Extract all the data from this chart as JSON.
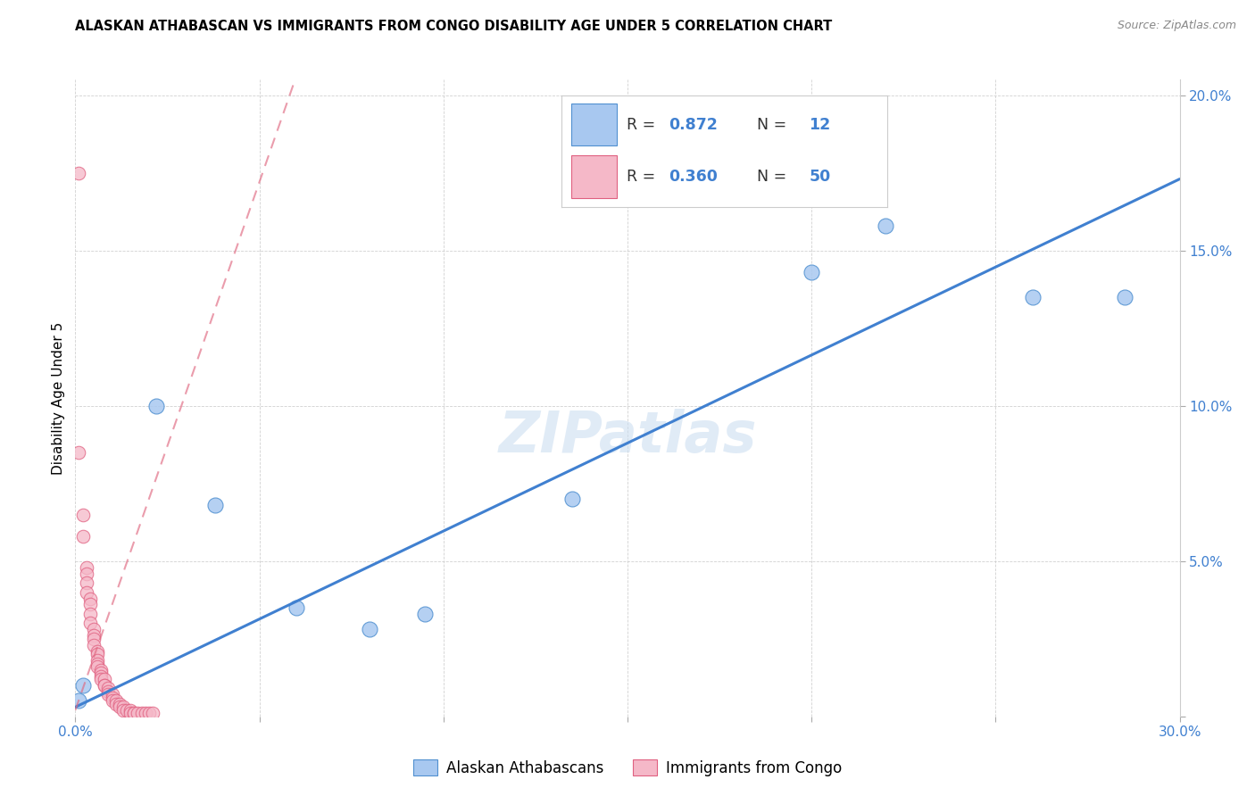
{
  "title": "ALASKAN ATHABASCAN VS IMMIGRANTS FROM CONGO DISABILITY AGE UNDER 5 CORRELATION CHART",
  "source": "Source: ZipAtlas.com",
  "ylabel": "Disability Age Under 5",
  "xlim": [
    0.0,
    0.3
  ],
  "ylim": [
    0.0,
    0.205
  ],
  "xticks": [
    0.0,
    0.05,
    0.1,
    0.15,
    0.2,
    0.25,
    0.3
  ],
  "yticks": [
    0.0,
    0.05,
    0.1,
    0.15,
    0.2
  ],
  "right_ytick_labels": [
    "",
    "5.0%",
    "10.0%",
    "15.0%",
    "20.0%"
  ],
  "left_xtick_label": "0.0%",
  "right_xtick_label": "30.0%",
  "blue_label": "Alaskan Athabascans",
  "pink_label": "Immigrants from Congo",
  "blue_R": 0.872,
  "blue_N": 12,
  "pink_R": 0.36,
  "pink_N": 50,
  "blue_color": "#A8C8F0",
  "pink_color": "#F5B8C8",
  "blue_edge_color": "#5090D0",
  "pink_edge_color": "#E06080",
  "blue_line_color": "#4080D0",
  "pink_line_color": "#E06880",
  "watermark": "ZIPatlas",
  "blue_points": [
    [
      0.001,
      0.005
    ],
    [
      0.002,
      0.01
    ],
    [
      0.022,
      0.1
    ],
    [
      0.038,
      0.068
    ],
    [
      0.06,
      0.035
    ],
    [
      0.08,
      0.028
    ],
    [
      0.095,
      0.033
    ],
    [
      0.135,
      0.07
    ],
    [
      0.2,
      0.143
    ],
    [
      0.22,
      0.158
    ],
    [
      0.26,
      0.135
    ],
    [
      0.285,
      0.135
    ]
  ],
  "pink_points": [
    [
      0.001,
      0.175
    ],
    [
      0.001,
      0.085
    ],
    [
      0.002,
      0.065
    ],
    [
      0.002,
      0.058
    ],
    [
      0.003,
      0.048
    ],
    [
      0.003,
      0.046
    ],
    [
      0.003,
      0.043
    ],
    [
      0.003,
      0.04
    ],
    [
      0.004,
      0.038
    ],
    [
      0.004,
      0.036
    ],
    [
      0.004,
      0.033
    ],
    [
      0.004,
      0.03
    ],
    [
      0.005,
      0.028
    ],
    [
      0.005,
      0.026
    ],
    [
      0.005,
      0.025
    ],
    [
      0.005,
      0.023
    ],
    [
      0.006,
      0.021
    ],
    [
      0.006,
      0.02
    ],
    [
      0.006,
      0.018
    ],
    [
      0.006,
      0.017
    ],
    [
      0.006,
      0.016
    ],
    [
      0.007,
      0.015
    ],
    [
      0.007,
      0.014
    ],
    [
      0.007,
      0.013
    ],
    [
      0.007,
      0.012
    ],
    [
      0.008,
      0.012
    ],
    [
      0.008,
      0.01
    ],
    [
      0.008,
      0.01
    ],
    [
      0.009,
      0.009
    ],
    [
      0.009,
      0.008
    ],
    [
      0.009,
      0.007
    ],
    [
      0.01,
      0.007
    ],
    [
      0.01,
      0.006
    ],
    [
      0.01,
      0.005
    ],
    [
      0.011,
      0.005
    ],
    [
      0.011,
      0.004
    ],
    [
      0.012,
      0.004
    ],
    [
      0.012,
      0.003
    ],
    [
      0.013,
      0.003
    ],
    [
      0.013,
      0.002
    ],
    [
      0.014,
      0.002
    ],
    [
      0.015,
      0.002
    ],
    [
      0.015,
      0.001
    ],
    [
      0.016,
      0.001
    ],
    [
      0.016,
      0.001
    ],
    [
      0.017,
      0.001
    ],
    [
      0.018,
      0.001
    ],
    [
      0.019,
      0.001
    ],
    [
      0.02,
      0.001
    ],
    [
      0.021,
      0.001
    ]
  ],
  "blue_line": [
    [
      0.0,
      0.003
    ],
    [
      0.3,
      0.173
    ]
  ],
  "pink_line": [
    [
      0.0,
      0.002
    ],
    [
      0.3,
      1.02
    ]
  ],
  "pink_line_x0": 0.0,
  "pink_line_y0": 0.002,
  "pink_line_slope": 3.4
}
